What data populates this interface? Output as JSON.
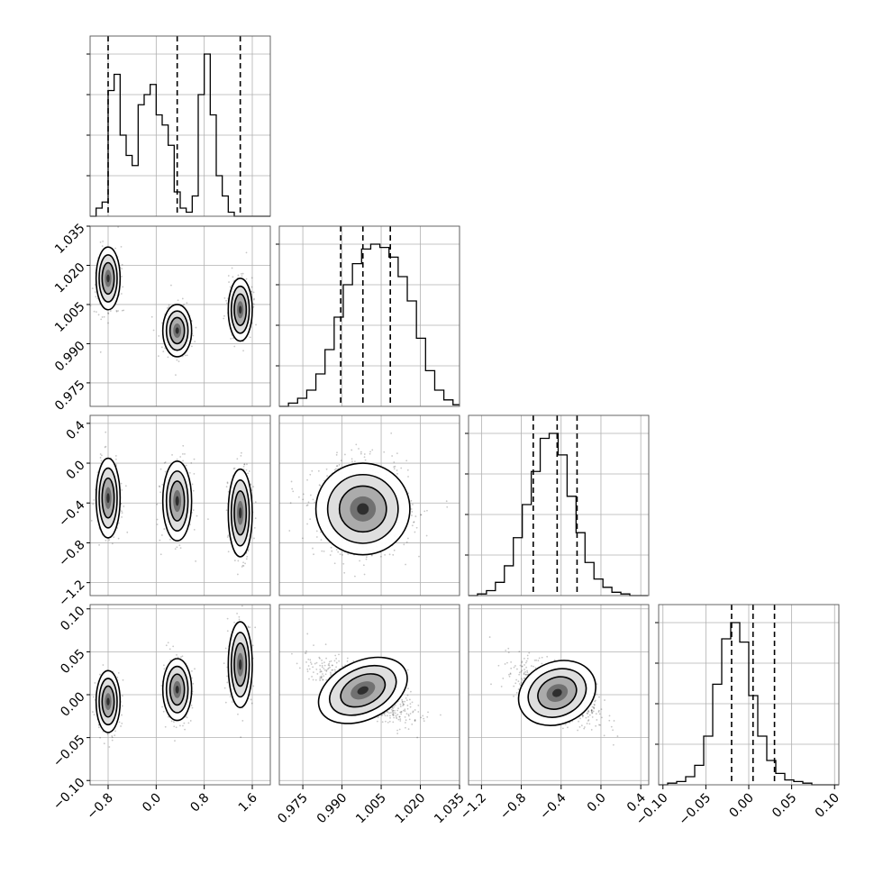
{
  "chart_data": {
    "type": "corner",
    "parameters": 4,
    "axis_ranges": [
      [
        -1.1,
        1.9
      ],
      [
        0.966,
        1.035
      ],
      [
        -1.33,
        0.48
      ],
      [
        -0.105,
        0.105
      ]
    ],
    "tick_labels": [
      [
        "−0.8",
        "0.0",
        "0.8",
        "1.6"
      ],
      [
        "0.975",
        "0.990",
        "1.005",
        "1.020",
        "1.035"
      ],
      [
        "−1.2",
        "−0.8",
        "−0.4",
        "0.0",
        "0.4"
      ],
      [
        "−0.10",
        "−0.05",
        "0.00",
        "0.05",
        "0.10"
      ]
    ],
    "ticks": [
      [
        -0.8,
        0.0,
        0.8,
        1.6
      ],
      [
        0.975,
        0.99,
        1.005,
        1.02,
        1.035
      ],
      [
        -1.2,
        -0.8,
        -0.4,
        0.0,
        0.4
      ],
      [
        -0.1,
        -0.05,
        0.0,
        0.05,
        0.1
      ]
    ],
    "quantiles": [
      [
        -0.8,
        0.35,
        1.4
      ],
      [
        0.9895,
        0.998,
        1.0085
      ],
      [
        -0.68,
        -0.44,
        -0.24
      ],
      [
        -0.02,
        0.005,
        0.03
      ]
    ],
    "histograms": [
      {
        "edges_start": -1.1,
        "bin_width": 0.1,
        "counts": [
          0,
          0.04,
          0.07,
          0.62,
          0.7,
          0.4,
          0.3,
          0.25,
          0.55,
          0.6,
          0.65,
          0.5,
          0.45,
          0.35,
          0.12,
          0.04,
          0.02,
          0.1,
          0.6,
          0.8,
          0.5,
          0.2,
          0.1,
          0.02,
          0,
          0,
          0,
          0,
          0,
          0
        ]
      },
      {
        "edges_start": 0.966,
        "bin_width": 0.0035,
        "counts": [
          0,
          0.02,
          0.05,
          0.1,
          0.2,
          0.35,
          0.55,
          0.75,
          0.88,
          0.97,
          1.0,
          0.98,
          0.92,
          0.8,
          0.65,
          0.42,
          0.22,
          0.1,
          0.04,
          0.01
        ]
      },
      {
        "edges_start": -1.33,
        "bin_width": 0.09,
        "counts": [
          0,
          0.01,
          0.03,
          0.08,
          0.18,
          0.35,
          0.55,
          0.75,
          0.95,
          0.98,
          0.85,
          0.6,
          0.38,
          0.2,
          0.1,
          0.05,
          0.02,
          0.01,
          0,
          0
        ]
      },
      {
        "edges_start": -0.105,
        "bin_width": 0.0105,
        "counts": [
          0,
          0.01,
          0.02,
          0.05,
          0.12,
          0.3,
          0.62,
          0.9,
          1.0,
          0.88,
          0.55,
          0.3,
          0.15,
          0.07,
          0.03,
          0.02,
          0.01,
          0,
          0,
          0
        ]
      }
    ],
    "blobs": [
      [
        [
          -0.8,
          1.015,
          0.1,
          0.006,
          0
        ],
        [
          0.35,
          0.995,
          0.12,
          0.005,
          0
        ],
        [
          1.4,
          1.003,
          0.1,
          0.006,
          0
        ]
      ],
      [
        [
          -0.8,
          -0.35,
          0.1,
          0.2,
          0
        ],
        [
          0.35,
          -0.38,
          0.12,
          0.2,
          0
        ],
        [
          1.4,
          -0.5,
          0.1,
          0.22,
          0
        ]
      ],
      [
        [
          -0.8,
          -0.008,
          0.1,
          0.018,
          0
        ],
        [
          0.35,
          0.006,
          0.12,
          0.018,
          0
        ],
        [
          1.4,
          0.035,
          0.1,
          0.025,
          0
        ]
      ],
      [
        [
          0.998,
          -0.46,
          0.009,
          0.23,
          0
        ]
      ],
      [
        [
          0.998,
          0.005,
          0.009,
          0.017,
          -0.75
        ]
      ],
      [
        [
          -0.44,
          0.002,
          0.2,
          0.018,
          -0.55
        ]
      ]
    ],
    "grid": true,
    "colors": {
      "ink": "#000000",
      "grid": "#b0b0b0",
      "points": "#000000"
    }
  }
}
